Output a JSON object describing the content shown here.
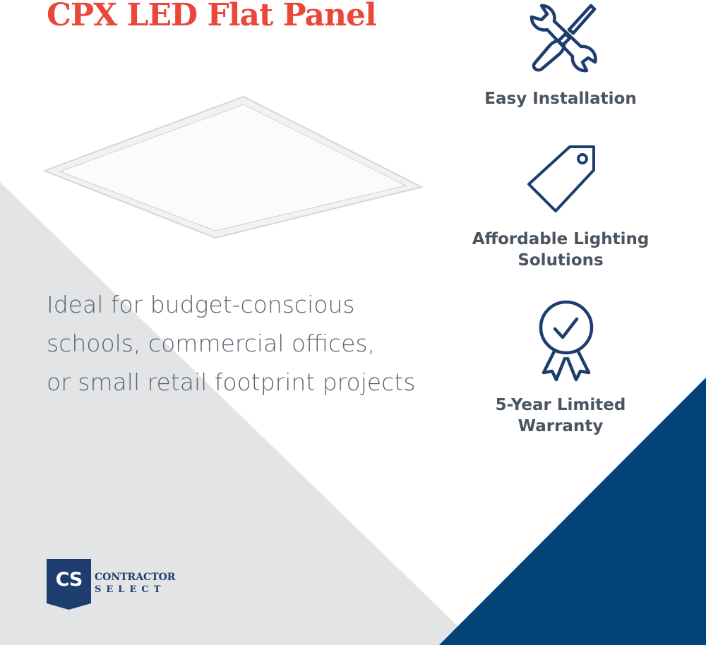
{
  "title": "CPX LED Flat Panel",
  "description": [
    "Ideal for budget-conscious",
    "schools, commercial offices,",
    "or small retail footprint projects"
  ],
  "features": [
    {
      "icon": "wrench-screwdriver-icon",
      "lines": [
        "Easy Installation"
      ]
    },
    {
      "icon": "price-tag-icon",
      "lines": [
        "Affordable Lighting",
        "Solutions"
      ]
    },
    {
      "icon": "award-ribbon-check-icon",
      "lines": [
        "5-Year Limited",
        "Warranty"
      ]
    }
  ],
  "logo": {
    "mark": "CS",
    "line1": "CONTRACTOR",
    "line2": "SELECT"
  },
  "colors": {
    "accent": "#e8473a",
    "navy": "#1d3d6e",
    "blue_band": "#04427a",
    "gray_band": "#e3e4e6",
    "text": "#4a5560"
  }
}
